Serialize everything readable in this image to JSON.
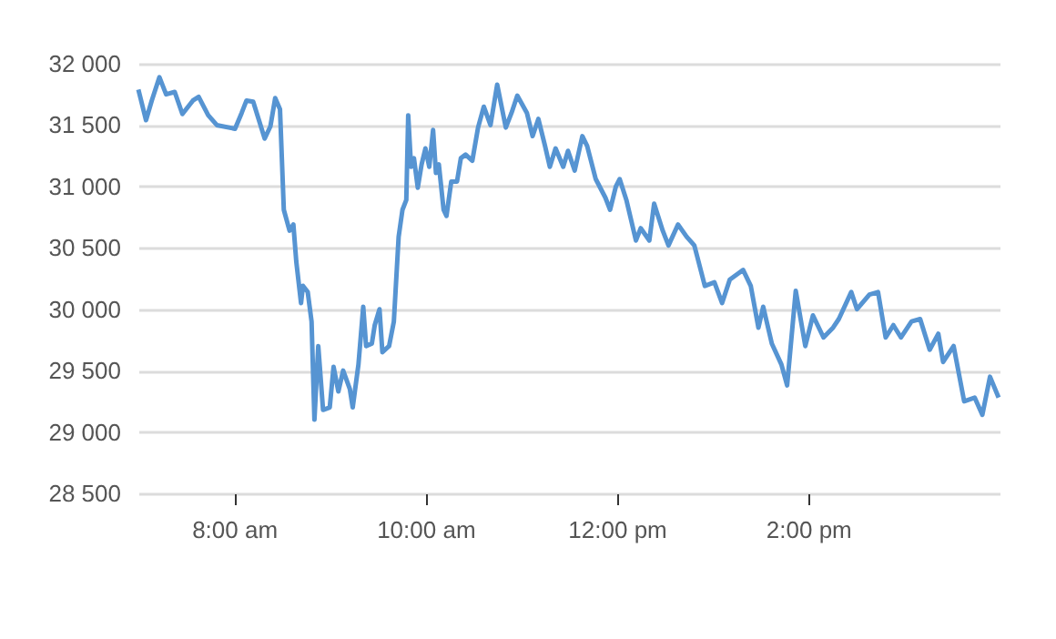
{
  "chart_data": {
    "type": "line",
    "x": [
      7.0,
      7.08,
      7.14,
      7.22,
      7.29,
      7.38,
      7.46,
      7.57,
      7.63,
      7.73,
      7.82,
      8.01,
      8.08,
      8.13,
      8.2,
      8.32,
      8.38,
      8.43,
      8.48,
      8.52,
      8.58,
      8.62,
      8.65,
      8.7,
      8.72,
      8.77,
      8.81,
      8.84,
      8.88,
      8.93,
      9.0,
      9.04,
      9.09,
      9.14,
      9.21,
      9.24,
      9.3,
      9.35,
      9.38,
      9.44,
      9.47,
      9.52,
      9.55,
      9.62,
      9.67,
      9.72,
      9.76,
      9.8,
      9.82,
      9.85,
      9.88,
      9.92,
      9.96,
      10.0,
      10.04,
      10.08,
      10.11,
      10.14,
      10.19,
      10.22,
      10.27,
      10.33,
      10.37,
      10.42,
      10.49,
      10.55,
      10.61,
      10.68,
      10.75,
      10.84,
      10.9,
      10.96,
      11.06,
      11.12,
      11.18,
      11.25,
      11.3,
      11.36,
      11.44,
      11.49,
      11.56,
      11.64,
      11.69,
      11.78,
      11.88,
      11.93,
      11.99,
      12.03,
      12.1,
      12.2,
      12.25,
      12.34,
      12.39,
      12.48,
      12.54,
      12.64,
      12.73,
      12.81,
      12.92,
      13.02,
      13.1,
      13.18,
      13.32,
      13.4,
      13.48,
      13.53,
      13.62,
      13.72,
      13.78,
      13.87,
      13.97,
      14.05,
      14.16,
      14.26,
      14.32,
      14.45,
      14.51,
      14.64,
      14.73,
      14.81,
      14.89,
      14.97,
      15.08,
      15.17,
      15.27,
      15.36,
      15.41,
      15.52,
      15.63,
      15.74,
      15.82,
      15.9,
      15.99
    ],
    "series": [
      {
        "color": "#5694d2",
        "values": [
          31790,
          31540,
          31700,
          31890,
          31750,
          31770,
          31590,
          31700,
          31730,
          31580,
          31500,
          31470,
          31600,
          31700,
          31690,
          31390,
          31490,
          31720,
          31630,
          30810,
          30640,
          30690,
          30390,
          30050,
          30190,
          30140,
          29900,
          29100,
          29700,
          29180,
          29200,
          29530,
          29330,
          29500,
          29350,
          29200,
          29550,
          30020,
          29700,
          29720,
          29870,
          30000,
          29650,
          29700,
          29900,
          30590,
          30810,
          30890,
          31580,
          31160,
          31230,
          30990,
          31180,
          31310,
          31160,
          31460,
          31110,
          31180,
          30810,
          30760,
          31040,
          31040,
          31230,
          31260,
          31210,
          31480,
          31650,
          31500,
          31830,
          31480,
          31600,
          31740,
          31600,
          31410,
          31550,
          31330,
          31160,
          31310,
          31160,
          31290,
          31130,
          31410,
          31330,
          31060,
          30910,
          30810,
          31000,
          31060,
          30890,
          30560,
          30660,
          30560,
          30860,
          30640,
          30520,
          30690,
          30590,
          30520,
          30190,
          30220,
          30050,
          30240,
          30320,
          30190,
          29850,
          30020,
          29720,
          29550,
          29380,
          30150,
          29700,
          29950,
          29770,
          29850,
          29920,
          30140,
          30000,
          30120,
          30140,
          29770,
          29870,
          29770,
          29900,
          29920,
          29670,
          29800,
          29570,
          29700,
          29250,
          29280,
          29140,
          29450,
          29280
        ]
      }
    ],
    "xlim": [
      7,
      16
    ],
    "xticks": [
      {
        "value": 8,
        "label": "8:00 am"
      },
      {
        "value": 10,
        "label": "10:00 am"
      },
      {
        "value": 12,
        "label": "12:00 pm"
      },
      {
        "value": 14,
        "label": "2:00 pm"
      }
    ],
    "ylim": [
      28500,
      32000
    ],
    "yticks": [
      {
        "value": 28500,
        "label": "28 500"
      },
      {
        "value": 29000,
        "label": "29 000"
      },
      {
        "value": 29500,
        "label": "29 500"
      },
      {
        "value": 30000,
        "label": "30 000"
      },
      {
        "value": 30500,
        "label": "30 500"
      },
      {
        "value": 31000,
        "label": "31 000"
      },
      {
        "value": 31500,
        "label": "31 500"
      },
      {
        "value": 32000,
        "label": "32 000"
      }
    ],
    "grid": "y",
    "marker": "none",
    "line_style": "solid"
  }
}
